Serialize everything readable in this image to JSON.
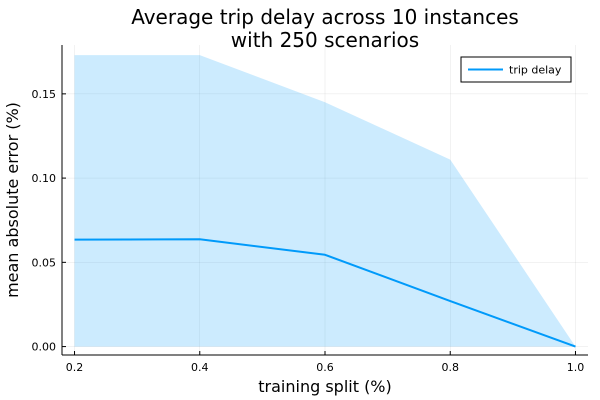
{
  "chart_data": {
    "type": "line",
    "title": "Average trip delay across 10 instances with 250 scenarios",
    "title_lines": [
      "Average trip delay across 10 instances",
      "with 250 scenarios"
    ],
    "xlabel": "training split (%)",
    "ylabel": "mean absolute error (%)",
    "xlim": [
      0.18,
      1.02
    ],
    "ylim": [
      -0.005,
      0.179
    ],
    "xticks": [
      0.2,
      0.4,
      0.6,
      0.8,
      1.0
    ],
    "xtick_labels": [
      "0.2",
      "0.4",
      "0.6",
      "0.8",
      "1.0"
    ],
    "yticks": [
      0.0,
      0.05,
      0.1,
      0.15
    ],
    "ytick_labels": [
      "0.00",
      "0.05",
      "0.10",
      "0.15"
    ],
    "grid": true,
    "legend_position": "top-right",
    "x": [
      0.2,
      0.4,
      0.6,
      0.8,
      1.0
    ],
    "series": [
      {
        "name": "trip delay",
        "color": "#009AFA",
        "values": [
          0.0635,
          0.0637,
          0.0545,
          0.027,
          0.0
        ],
        "band_upper": [
          0.173,
          0.173,
          0.145,
          0.111,
          0.0
        ],
        "band_lower": [
          0.0,
          0.0,
          0.0,
          0.0,
          0.0
        ],
        "band_color": "#009AFA",
        "band_opacity": 0.2
      }
    ]
  }
}
